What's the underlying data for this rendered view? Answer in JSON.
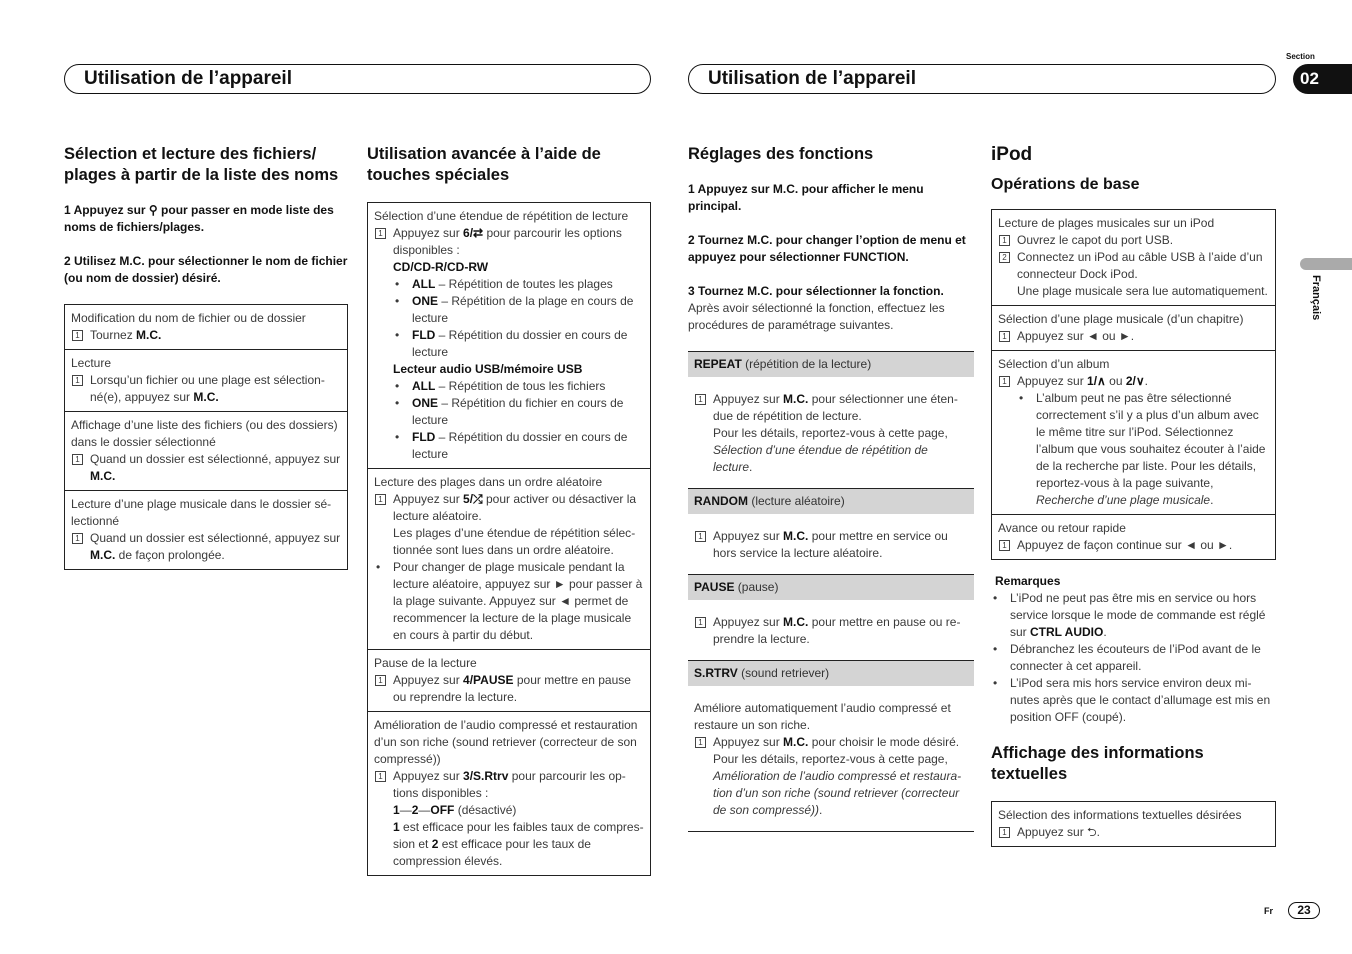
{
  "header": {
    "left_title": "Utilisation de l’appareil",
    "right_title": "Utilisation de l’appareil",
    "section_label": "Section",
    "section_number": "02",
    "language_tab": "Français",
    "page_lang": "Fr",
    "page_number": "23"
  },
  "columns": [
    {
      "items": [
        {
          "t": "h2",
          "text": "Sélection et lecture des fichiers/ plages à partir de la liste des noms"
        },
        {
          "t": "step",
          "text": "1   Appuyez sur ⚲ pour passer en mode liste des noms de fichiers/plages."
        },
        {
          "t": "step",
          "text": "2   Utilisez M.C. pour sélectionner le nom de fichier (ou nom de dossier) désiré."
        },
        {
          "t": "box",
          "rows": [
            {
              "lines": [
                {
                  "k": "t",
                  "text": "Modification du nom de fichier ou de dossier"
                },
                {
                  "k": "n",
                  "text": "Tournez **M.C.**"
                }
              ]
            },
            {
              "lines": [
                {
                  "k": "t",
                  "text": "Lecture"
                },
                {
                  "k": "n",
                  "text": "Lorsqu’un fichier ou une plage est sélection­né(e), appuyez sur **M.C.**"
                }
              ]
            },
            {
              "lines": [
                {
                  "k": "t",
                  "text": "Affichage d’une liste des fichiers (ou des dossiers) dans le dossier sélectionné"
                },
                {
                  "k": "n",
                  "text": "Quand un dossier est sélectionné, appuyez sur **M.C.**"
                }
              ]
            },
            {
              "lines": [
                {
                  "k": "t",
                  "text": "Lecture d’une plage musicale dans le dossier sé­lectionné"
                },
                {
                  "k": "n",
                  "text": "Quand un dossier est sélectionné, appuyez sur **M.C.** de façon prolongée."
                }
              ]
            }
          ]
        }
      ]
    },
    {
      "items": [
        {
          "t": "h2",
          "text": "Utilisation avancée à l’aide de touches spéciales"
        },
        {
          "t": "box",
          "rows": [
            {
              "lines": [
                {
                  "k": "t",
                  "text": "Sélection d’une étendue de répétition de lecture"
                },
                {
                  "k": "n",
                  "text": "Appuyez sur **6/⇄** pour parcourir les options disponibles :"
                },
                {
                  "k": "sub",
                  "text": "**CD/CD-R/CD-RW**"
                },
                {
                  "k": "b",
                  "text": "**ALL** – Répétition de toutes les plages"
                },
                {
                  "k": "b",
                  "text": "**ONE** – Répétition de la plage en cours de lecture"
                },
                {
                  "k": "b",
                  "text": "**FLD** – Répétition du dossier en cours de lecture"
                },
                {
                  "k": "sub",
                  "text": "**Lecteur audio USB/mémoire USB**"
                },
                {
                  "k": "b",
                  "text": "**ALL** – Répétition de tous les fichiers"
                },
                {
                  "k": "b",
                  "text": "**ONE** – Répétition du fichier en cours de lecture"
                },
                {
                  "k": "b",
                  "text": "**FLD** – Répétition du dossier en cours de lecture"
                }
              ]
            },
            {
              "lines": [
                {
                  "k": "t",
                  "text": "Lecture des plages dans un ordre aléatoire"
                },
                {
                  "k": "n",
                  "text": "Appuyez sur **5/⤮** pour activer ou désactiver la lecture aléatoire."
                },
                {
                  "k": "sub",
                  "text": "Les plages d’une étendue de répétition sélec­tionnée sont lues dans un ordre aléatoire."
                },
                {
                  "k": "bb",
                  "text": "Pour changer de plage musicale pendant la lecture aléatoire, appuyez sur ► pour passer à la plage suivante. Appuyez sur ◄ permet de re­commencer la lecture de la plage musicale en cours à partir du début."
                }
              ]
            },
            {
              "lines": [
                {
                  "k": "t",
                  "text": "Pause de la lecture"
                },
                {
                  "k": "n",
                  "text": "Appuyez sur **4/PAUSE** pour mettre en pause ou reprendre la lecture."
                }
              ]
            },
            {
              "lines": [
                {
                  "k": "t",
                  "text": "Amélioration de l’audio compressé et restauration d’un son riche (sound retriever (correcteur de son compressé))"
                },
                {
                  "k": "n",
                  "text": "Appuyez sur **3/S.Rtrv** pour parcourir les op­tions disponibles :"
                },
                {
                  "k": "sub",
                  "text": "**1**—**2**—**OFF** (désactivé)"
                },
                {
                  "k": "sub",
                  "text": "**1** est efficace pour les faibles taux de compres­sion et **2** est efficace pour les taux de compres­sion élevés."
                }
              ]
            }
          ]
        }
      ]
    },
    {
      "items": [
        {
          "t": "h2",
          "text": "Réglages des fonctions"
        },
        {
          "t": "step",
          "text": "1   Appuyez sur M.C. pour afficher le menu principal."
        },
        {
          "t": "step",
          "text": "2   Tournez M.C. pour changer l’option de menu et appuyez pour sélectionner FUNCTION."
        },
        {
          "t": "stepnb",
          "text": "3   Tournez M.C. pour sélectionner la fonc­tion."
        },
        {
          "t": "p",
          "text": "Après avoir sélectionné la fonction, effectuez les procédures de paramétrage suivantes."
        },
        {
          "t": "bar",
          "title": "**REPEAT** (répétition de la lecture)",
          "lines": [
            {
              "k": "n",
              "text": "Appuyez sur **M.C.** pour sélectionner une éten­due de répétition de lecture."
            },
            {
              "k": "sub",
              "text": "Pour les détails, reportez-vous à cette page, _Sé­lection d’une étendue de répétition de lecture_."
            }
          ]
        },
        {
          "t": "bar",
          "title": "**RANDOM** (lecture aléatoire)",
          "lines": [
            {
              "k": "n",
              "text": "Appuyez sur **M.C.** pour mettre en service ou hors service la lecture aléatoire."
            }
          ]
        },
        {
          "t": "bar",
          "title": "**PAUSE** (pause)",
          "lines": [
            {
              "k": "n",
              "text": "Appuyez sur **M.C.** pour mettre en pause ou re­prendre la lecture."
            }
          ]
        },
        {
          "t": "bar",
          "title": "**S.RTRV** (sound retriever)",
          "lines": [
            {
              "k": "t",
              "text": "Améliore automatiquement l’audio compressé et restaure un son riche."
            },
            {
              "k": "n",
              "text": "Appuyez sur **M.C.** pour choisir le mode désiré."
            },
            {
              "k": "sub",
              "text": "Pour les détails, reportez-vous à cette page, _Amélioration de l’audio compressé et restaura­tion d’un son riche (sound retriever (correcteur de son compressé))_."
            }
          ]
        },
        {
          "t": "rule"
        }
      ]
    },
    {
      "items": [
        {
          "t": "h1",
          "text": "iPod"
        },
        {
          "t": "h3",
          "text": "Opérations de base"
        },
        {
          "t": "box",
          "rows": [
            {
              "lines": [
                {
                  "k": "t",
                  "text": "Lecture de plages musicales sur un iPod"
                },
                {
                  "k": "n",
                  "num": "1",
                  "text": "Ouvrez le capot du port USB."
                },
                {
                  "k": "n",
                  "num": "2",
                  "text": "Connectez un iPod au câble USB à l’aide d’un connecteur Dock iPod."
                },
                {
                  "k": "sub",
                  "text": "Une plage musicale sera lue automatique­ment."
                }
              ]
            },
            {
              "lines": [
                {
                  "k": "t",
                  "text": "Sélection d’une plage musicale (d’un chapitre)"
                },
                {
                  "k": "n",
                  "text": "Appuyez sur ◄ ou ►."
                }
              ]
            },
            {
              "lines": [
                {
                  "k": "t",
                  "text": "Sélection d’un album"
                },
                {
                  "k": "n",
                  "text": "Appuyez sur **1/∧** ou **2/∨**."
                },
                {
                  "k": "b",
                  "text": "L’album peut ne pas être sélectionné correcte­ment s’il y a plus d’un album avec le même titre sur l’iPod. Sélectionnez l’album que vous souhaitez écouter à l’aide de la recherche par liste. Pour les détails, reportez-vous à la page suivante, _Recherche d’une plage musicale_."
                }
              ]
            },
            {
              "lines": [
                {
                  "k": "t",
                  "text": "Avance ou retour rapide"
                },
                {
                  "k": "n",
                  "text": "Appuyez de façon continue sur ◄ ou ►."
                }
              ]
            }
          ]
        },
        {
          "t": "rem",
          "text": "Remarques"
        },
        {
          "t": "bullets",
          "lines": [
            "L’iPod ne peut pas être mis en service ou hors service lorsque le mode de commande est réglé sur **CTRL AUDIO**.",
            "Débranchez les écouteurs de l’iPod avant de le connecter à cet appareil.",
            "L’iPod sera mis hors service environ deux mi­nutes après que le contact d’allumage est mis en position OFF (coupé)."
          ]
        },
        {
          "t": "h2",
          "text": "Affichage des informations textuelles"
        },
        {
          "t": "box",
          "rows": [
            {
              "lines": [
                {
                  "k": "t",
                  "text": "Sélection des informations textuelles désirées"
                },
                {
                  "k": "n",
                  "text": "Appuyez sur ⮌."
                }
              ]
            }
          ]
        }
      ]
    }
  ]
}
